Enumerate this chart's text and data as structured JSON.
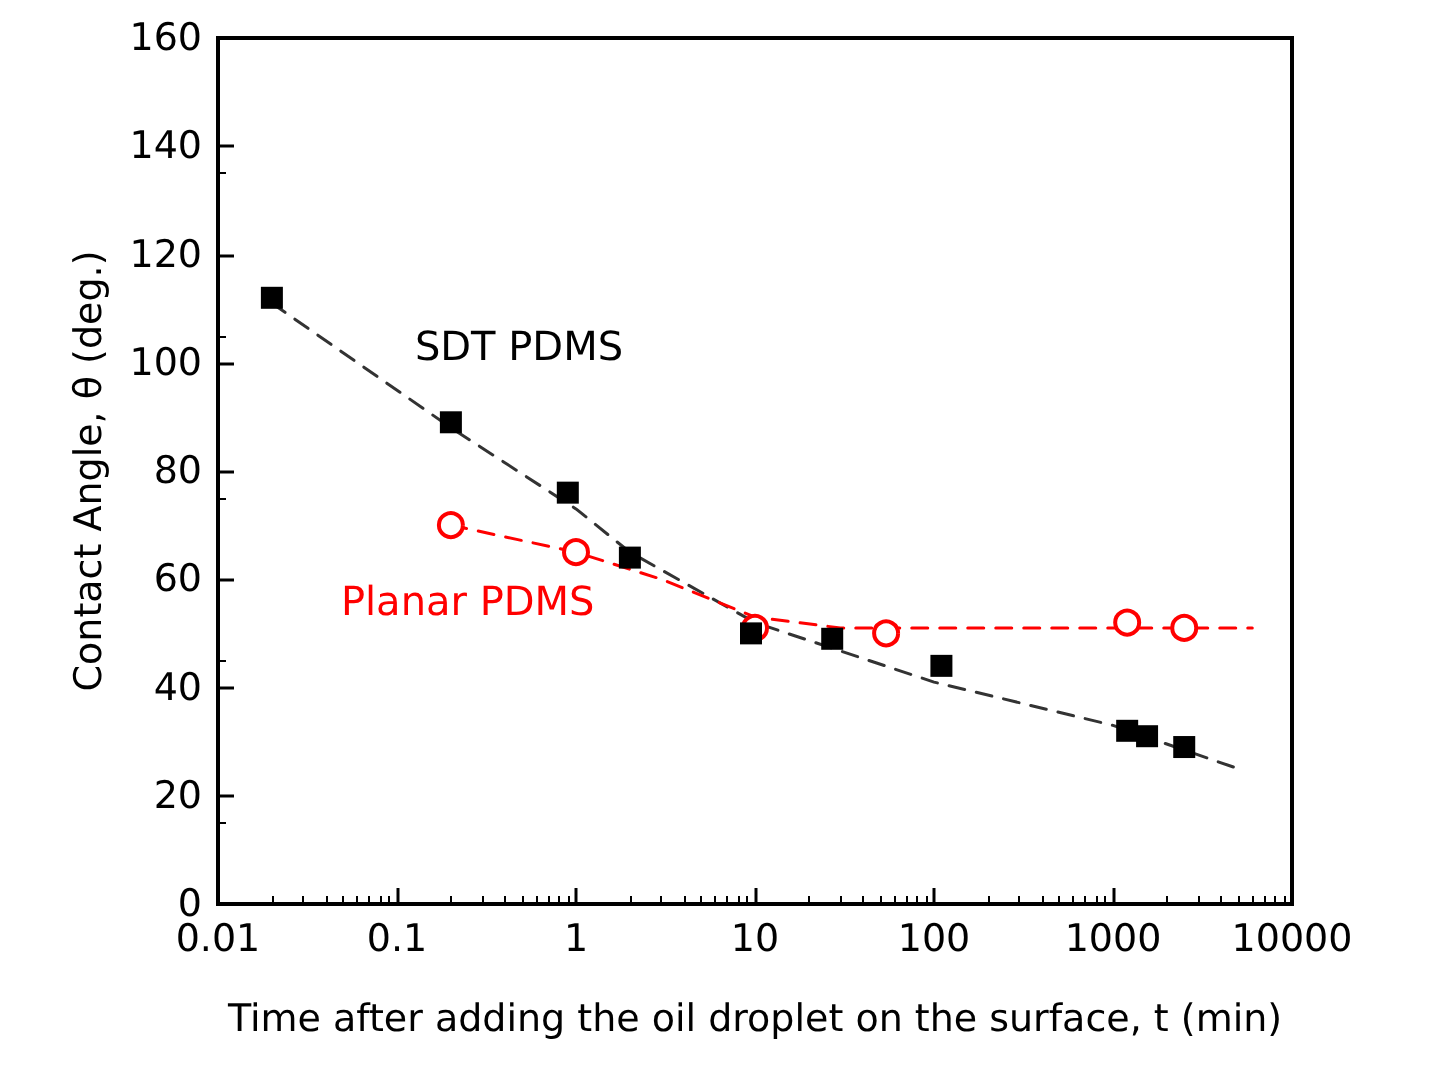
{
  "chart_data": {
    "type": "scatter",
    "xlabel": "Time after adding the oil droplet on the surface, t (min)",
    "ylabel": "Contact Angle, θ (deg.)",
    "log": "x",
    "xlim": [
      0.01,
      10000
    ],
    "xticks": [
      0.01,
      0.1,
      1,
      10,
      100,
      1000,
      10000
    ],
    "ylim": [
      0,
      160
    ],
    "yticks": [
      0,
      20,
      40,
      60,
      80,
      100,
      120,
      140,
      160
    ],
    "grid": false,
    "legend": false,
    "series": [
      {
        "name": "SDT PDMS",
        "color": "#000000",
        "marker": "square",
        "x": [
          0.02,
          0.2,
          0.9,
          2,
          9.5,
          27,
          110,
          1200,
          1550,
          2500
        ],
        "values": [
          112,
          89,
          76,
          64,
          50,
          49,
          44,
          32,
          31,
          29
        ]
      },
      {
        "name": "Planar PDMS",
        "color": "#ff0000",
        "marker": "circle",
        "x": [
          0.2,
          1,
          10,
          54,
          1200,
          2500
        ],
        "values": [
          70,
          65,
          51,
          50,
          52,
          51
        ]
      },
      {
        "type": "line",
        "color": "#333333",
        "line_style": "dashed",
        "x": [
          0.02,
          0.2,
          1,
          2,
          10,
          100,
          1000,
          5000
        ],
        "values": [
          111,
          88,
          73,
          65,
          52,
          41,
          33,
          25
        ]
      },
      {
        "type": "line",
        "color": "#ff0000",
        "line_style": "dashed",
        "x": [
          0.2,
          1,
          3,
          10,
          30,
          100,
          1000,
          6000
        ],
        "values": [
          70,
          65,
          60,
          53,
          51,
          51,
          51,
          51
        ]
      }
    ]
  }
}
